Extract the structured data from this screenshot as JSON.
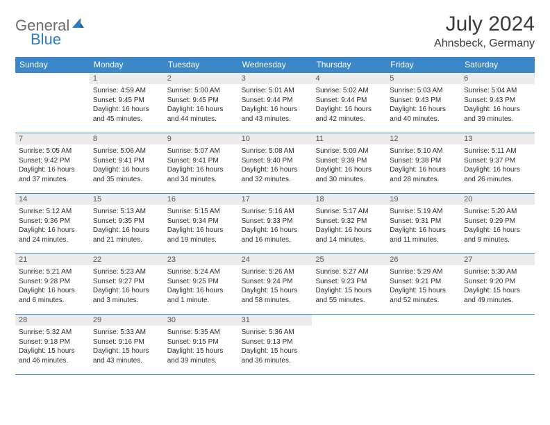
{
  "logo": {
    "word1": "General",
    "word2": "Blue"
  },
  "title": "July 2024",
  "location": "Ahnsbeck, Germany",
  "colors": {
    "header_bg": "#3b87c8",
    "header_text": "#ffffff",
    "daynum_bg": "#ececec",
    "border": "#3b87c8",
    "logo_gray": "#6b6b6b",
    "logo_blue": "#2f7bbf"
  },
  "weekdays": [
    "Sunday",
    "Monday",
    "Tuesday",
    "Wednesday",
    "Thursday",
    "Friday",
    "Saturday"
  ],
  "weeks": [
    [
      {
        "n": "",
        "sr": "",
        "ss": "",
        "dl": ""
      },
      {
        "n": "1",
        "sr": "Sunrise: 4:59 AM",
        "ss": "Sunset: 9:45 PM",
        "dl": "Daylight: 16 hours and 45 minutes."
      },
      {
        "n": "2",
        "sr": "Sunrise: 5:00 AM",
        "ss": "Sunset: 9:45 PM",
        "dl": "Daylight: 16 hours and 44 minutes."
      },
      {
        "n": "3",
        "sr": "Sunrise: 5:01 AM",
        "ss": "Sunset: 9:44 PM",
        "dl": "Daylight: 16 hours and 43 minutes."
      },
      {
        "n": "4",
        "sr": "Sunrise: 5:02 AM",
        "ss": "Sunset: 9:44 PM",
        "dl": "Daylight: 16 hours and 42 minutes."
      },
      {
        "n": "5",
        "sr": "Sunrise: 5:03 AM",
        "ss": "Sunset: 9:43 PM",
        "dl": "Daylight: 16 hours and 40 minutes."
      },
      {
        "n": "6",
        "sr": "Sunrise: 5:04 AM",
        "ss": "Sunset: 9:43 PM",
        "dl": "Daylight: 16 hours and 39 minutes."
      }
    ],
    [
      {
        "n": "7",
        "sr": "Sunrise: 5:05 AM",
        "ss": "Sunset: 9:42 PM",
        "dl": "Daylight: 16 hours and 37 minutes."
      },
      {
        "n": "8",
        "sr": "Sunrise: 5:06 AM",
        "ss": "Sunset: 9:41 PM",
        "dl": "Daylight: 16 hours and 35 minutes."
      },
      {
        "n": "9",
        "sr": "Sunrise: 5:07 AM",
        "ss": "Sunset: 9:41 PM",
        "dl": "Daylight: 16 hours and 34 minutes."
      },
      {
        "n": "10",
        "sr": "Sunrise: 5:08 AM",
        "ss": "Sunset: 9:40 PM",
        "dl": "Daylight: 16 hours and 32 minutes."
      },
      {
        "n": "11",
        "sr": "Sunrise: 5:09 AM",
        "ss": "Sunset: 9:39 PM",
        "dl": "Daylight: 16 hours and 30 minutes."
      },
      {
        "n": "12",
        "sr": "Sunrise: 5:10 AM",
        "ss": "Sunset: 9:38 PM",
        "dl": "Daylight: 16 hours and 28 minutes."
      },
      {
        "n": "13",
        "sr": "Sunrise: 5:11 AM",
        "ss": "Sunset: 9:37 PM",
        "dl": "Daylight: 16 hours and 26 minutes."
      }
    ],
    [
      {
        "n": "14",
        "sr": "Sunrise: 5:12 AM",
        "ss": "Sunset: 9:36 PM",
        "dl": "Daylight: 16 hours and 24 minutes."
      },
      {
        "n": "15",
        "sr": "Sunrise: 5:13 AM",
        "ss": "Sunset: 9:35 PM",
        "dl": "Daylight: 16 hours and 21 minutes."
      },
      {
        "n": "16",
        "sr": "Sunrise: 5:15 AM",
        "ss": "Sunset: 9:34 PM",
        "dl": "Daylight: 16 hours and 19 minutes."
      },
      {
        "n": "17",
        "sr": "Sunrise: 5:16 AM",
        "ss": "Sunset: 9:33 PM",
        "dl": "Daylight: 16 hours and 16 minutes."
      },
      {
        "n": "18",
        "sr": "Sunrise: 5:17 AM",
        "ss": "Sunset: 9:32 PM",
        "dl": "Daylight: 16 hours and 14 minutes."
      },
      {
        "n": "19",
        "sr": "Sunrise: 5:19 AM",
        "ss": "Sunset: 9:31 PM",
        "dl": "Daylight: 16 hours and 11 minutes."
      },
      {
        "n": "20",
        "sr": "Sunrise: 5:20 AM",
        "ss": "Sunset: 9:29 PM",
        "dl": "Daylight: 16 hours and 9 minutes."
      }
    ],
    [
      {
        "n": "21",
        "sr": "Sunrise: 5:21 AM",
        "ss": "Sunset: 9:28 PM",
        "dl": "Daylight: 16 hours and 6 minutes."
      },
      {
        "n": "22",
        "sr": "Sunrise: 5:23 AM",
        "ss": "Sunset: 9:27 PM",
        "dl": "Daylight: 16 hours and 3 minutes."
      },
      {
        "n": "23",
        "sr": "Sunrise: 5:24 AM",
        "ss": "Sunset: 9:25 PM",
        "dl": "Daylight: 16 hours and 1 minute."
      },
      {
        "n": "24",
        "sr": "Sunrise: 5:26 AM",
        "ss": "Sunset: 9:24 PM",
        "dl": "Daylight: 15 hours and 58 minutes."
      },
      {
        "n": "25",
        "sr": "Sunrise: 5:27 AM",
        "ss": "Sunset: 9:23 PM",
        "dl": "Daylight: 15 hours and 55 minutes."
      },
      {
        "n": "26",
        "sr": "Sunrise: 5:29 AM",
        "ss": "Sunset: 9:21 PM",
        "dl": "Daylight: 15 hours and 52 minutes."
      },
      {
        "n": "27",
        "sr": "Sunrise: 5:30 AM",
        "ss": "Sunset: 9:20 PM",
        "dl": "Daylight: 15 hours and 49 minutes."
      }
    ],
    [
      {
        "n": "28",
        "sr": "Sunrise: 5:32 AM",
        "ss": "Sunset: 9:18 PM",
        "dl": "Daylight: 15 hours and 46 minutes."
      },
      {
        "n": "29",
        "sr": "Sunrise: 5:33 AM",
        "ss": "Sunset: 9:16 PM",
        "dl": "Daylight: 15 hours and 43 minutes."
      },
      {
        "n": "30",
        "sr": "Sunrise: 5:35 AM",
        "ss": "Sunset: 9:15 PM",
        "dl": "Daylight: 15 hours and 39 minutes."
      },
      {
        "n": "31",
        "sr": "Sunrise: 5:36 AM",
        "ss": "Sunset: 9:13 PM",
        "dl": "Daylight: 15 hours and 36 minutes."
      },
      {
        "n": "",
        "sr": "",
        "ss": "",
        "dl": ""
      },
      {
        "n": "",
        "sr": "",
        "ss": "",
        "dl": ""
      },
      {
        "n": "",
        "sr": "",
        "ss": "",
        "dl": ""
      }
    ]
  ]
}
